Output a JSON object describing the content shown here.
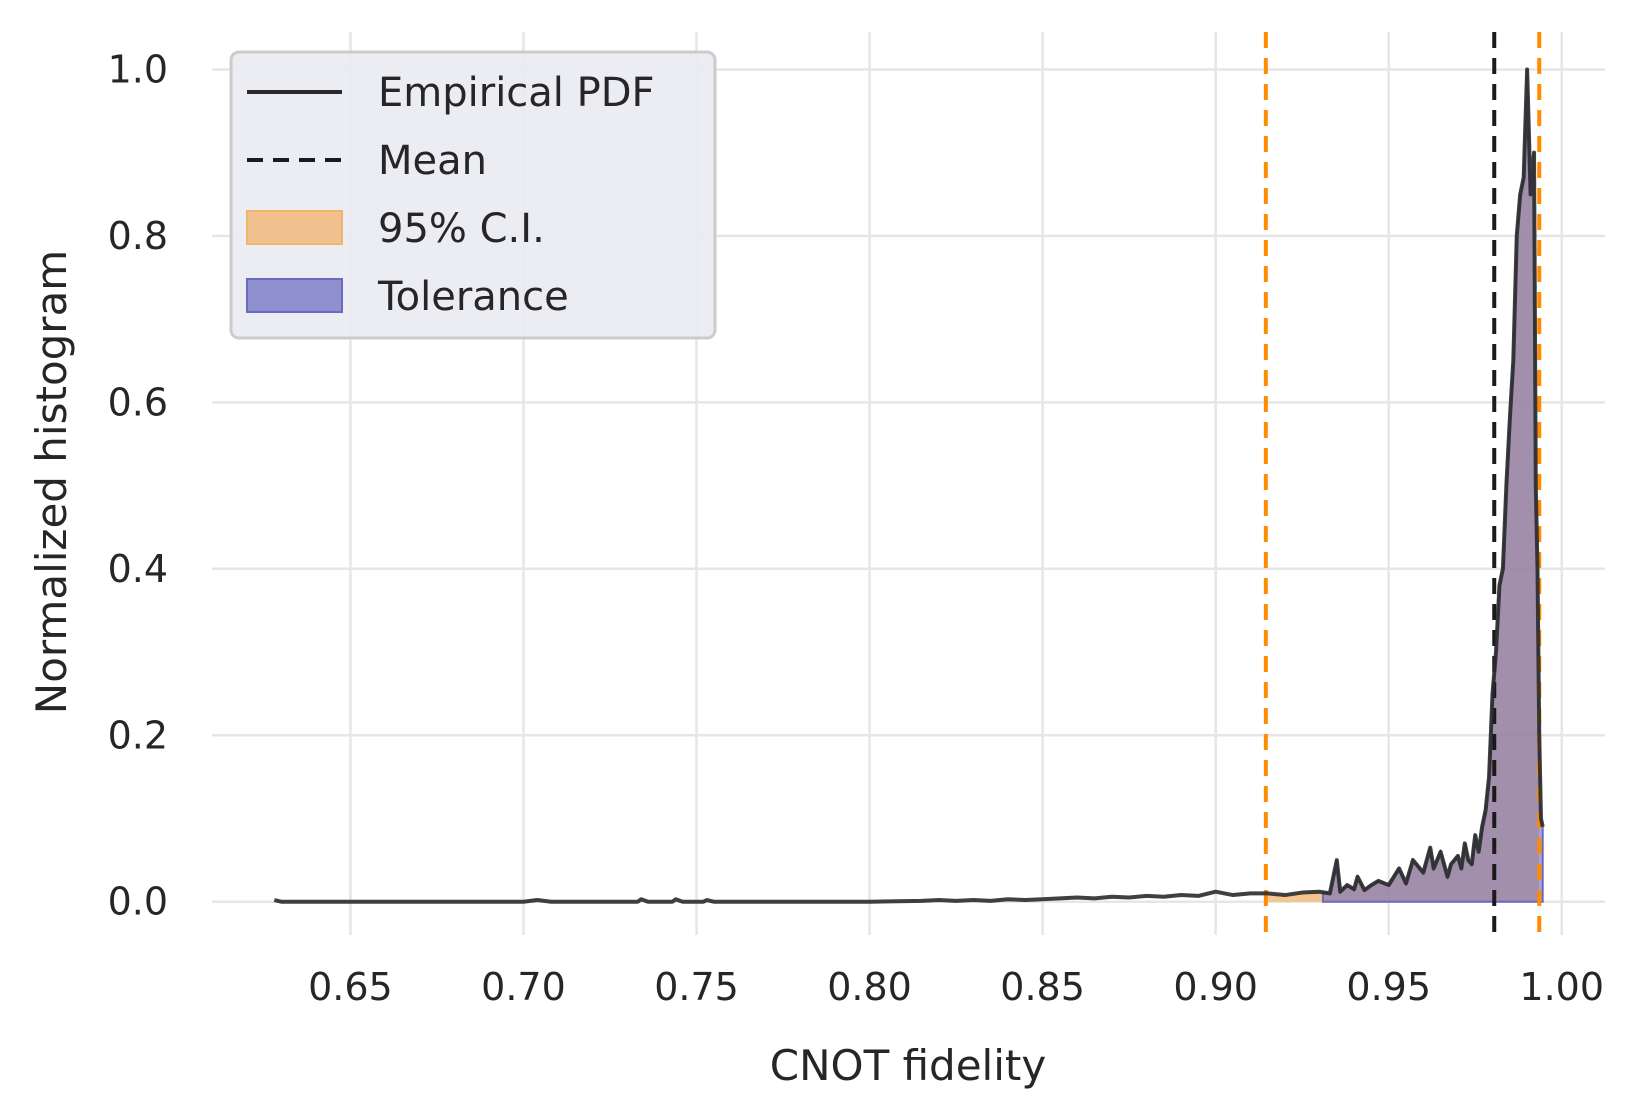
{
  "chart_data": {
    "type": "line",
    "title": "",
    "xlabel": "CNOT fidelity",
    "ylabel": "Normalized histogram",
    "xlim": [
      0.61,
      1.0125
    ],
    "ylim": [
      -0.04,
      1.045
    ],
    "x_ticks": [
      0.65,
      0.7,
      0.75,
      0.8,
      0.85,
      0.9,
      0.95,
      1.0
    ],
    "x_tick_labels": [
      "0.65",
      "0.70",
      "0.75",
      "0.80",
      "0.85",
      "0.90",
      "0.95",
      "1.00"
    ],
    "y_ticks": [
      0.0,
      0.2,
      0.4,
      0.6,
      0.8,
      1.0
    ],
    "y_tick_labels": [
      "0.0",
      "0.2",
      "0.4",
      "0.6",
      "0.8",
      "1.0"
    ],
    "grid": true,
    "legend_position": "top-left",
    "legend": [
      "Empirical PDF",
      "Mean",
      "95% C.I.",
      "Tolerance"
    ],
    "colors": {
      "pdf_line": "#2b2b2b",
      "mean_line": "#1a1a1a",
      "ci_line": "#ff8c00",
      "ci_fill": "#f2b36b",
      "tolerance_fill": "#6a6abf",
      "legend_bg": "#eaeaf2",
      "grid": "#e6e6e6"
    },
    "series": [
      {
        "name": "Empirical PDF",
        "x": [
          0.628,
          0.63,
          0.65,
          0.7,
          0.704,
          0.708,
          0.733,
          0.734,
          0.736,
          0.743,
          0.744,
          0.746,
          0.752,
          0.753,
          0.755,
          0.78,
          0.8,
          0.815,
          0.82,
          0.825,
          0.83,
          0.835,
          0.84,
          0.845,
          0.85,
          0.855,
          0.86,
          0.865,
          0.87,
          0.875,
          0.88,
          0.885,
          0.89,
          0.895,
          0.9,
          0.905,
          0.91,
          0.915,
          0.92,
          0.925,
          0.93,
          0.933,
          0.935,
          0.936,
          0.938,
          0.94,
          0.941,
          0.943,
          0.945,
          0.947,
          0.95,
          0.953,
          0.955,
          0.957,
          0.96,
          0.962,
          0.963,
          0.965,
          0.967,
          0.968,
          0.97,
          0.971,
          0.972,
          0.973,
          0.974,
          0.975,
          0.976,
          0.977,
          0.978,
          0.979,
          0.98,
          0.981,
          0.982,
          0.983,
          0.984,
          0.985,
          0.986,
          0.987,
          0.988,
          0.989,
          0.99,
          0.991,
          0.992,
          0.9925,
          0.993,
          0.9935,
          0.994,
          0.9945
        ],
        "y": [
          0.002,
          0.0,
          0.0,
          0.0,
          0.002,
          0.0,
          0.0,
          0.003,
          0.0,
          0.0,
          0.003,
          0.0,
          0.0,
          0.002,
          0.0,
          0.0,
          0.0,
          0.001,
          0.002,
          0.001,
          0.002,
          0.001,
          0.003,
          0.002,
          0.003,
          0.004,
          0.005,
          0.004,
          0.006,
          0.005,
          0.007,
          0.006,
          0.008,
          0.007,
          0.012,
          0.008,
          0.01,
          0.01,
          0.008,
          0.011,
          0.012,
          0.01,
          0.05,
          0.012,
          0.02,
          0.015,
          0.03,
          0.014,
          0.02,
          0.025,
          0.02,
          0.04,
          0.022,
          0.05,
          0.035,
          0.065,
          0.04,
          0.06,
          0.03,
          0.045,
          0.055,
          0.04,
          0.07,
          0.05,
          0.045,
          0.08,
          0.06,
          0.09,
          0.11,
          0.15,
          0.25,
          0.3,
          0.38,
          0.4,
          0.5,
          0.58,
          0.65,
          0.8,
          0.85,
          0.87,
          1.0,
          0.85,
          0.9,
          0.5,
          0.4,
          0.2,
          0.1,
          0.09
        ]
      }
    ],
    "mean": 0.9805,
    "ci_95": [
      0.9145,
      0.9935
    ],
    "tolerance_start": 0.931,
    "ci_fill_start": 0.9145
  }
}
